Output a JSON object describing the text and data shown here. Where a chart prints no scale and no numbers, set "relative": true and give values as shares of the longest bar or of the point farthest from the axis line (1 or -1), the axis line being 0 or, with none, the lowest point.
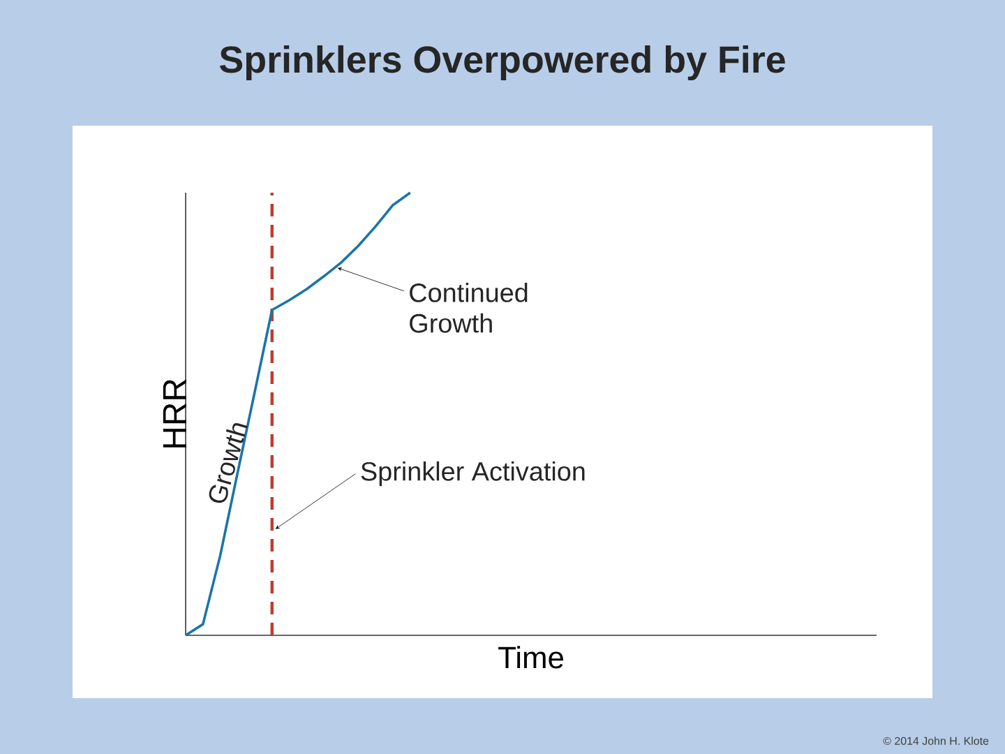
{
  "chart_data": {
    "type": "line",
    "title": "Sprinklers Overpowered by Fire",
    "xlabel": "Time",
    "ylabel": "HRR",
    "relative": true,
    "line_style": "solid",
    "color": "#1b75a8",
    "categories": [
      null,
      null,
      null,
      null,
      null,
      null,
      null,
      null,
      null,
      null,
      null,
      null,
      null,
      null,
      null,
      null,
      null,
      null,
      null,
      null,
      null,
      null,
      null,
      null,
      null,
      null,
      null,
      null,
      null,
      null,
      null,
      null,
      null,
      null,
      null,
      null,
      null,
      null,
      null,
      null,
      null
    ],
    "values": [
      0,
      0.025,
      0.18,
      0.366,
      0.55,
      0.735,
      0.757,
      0.782,
      0.811,
      0.842,
      0.88,
      0.924,
      0.972,
      1,
      null,
      null,
      null,
      null,
      null,
      null,
      null,
      null,
      null,
      null,
      null,
      null,
      null,
      null,
      null,
      null,
      null,
      null,
      null,
      null,
      null,
      null,
      null,
      null,
      null,
      null,
      null
    ],
    "annotations": [
      "Continued Growth",
      "Sprinkler Activation",
      "Growth",
      "© 2014 John H. Klote"
    ]
  }
}
